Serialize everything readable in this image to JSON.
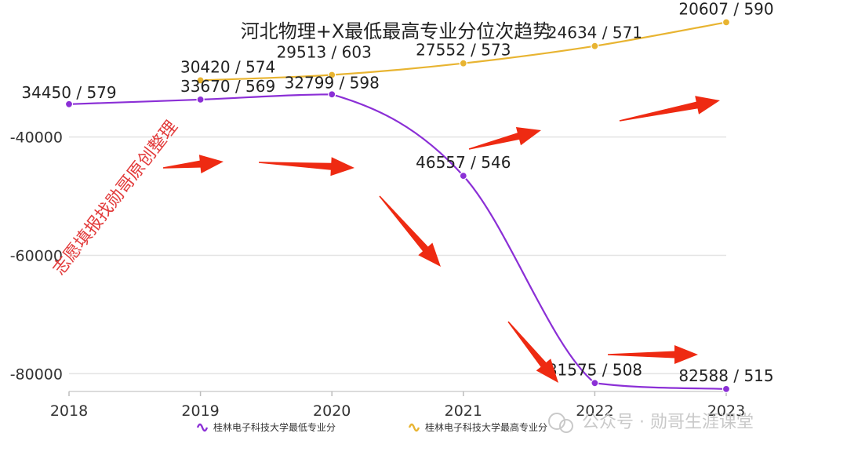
{
  "chart_data": {
    "type": "line",
    "title": "河北物理+X最低最高专业分位次趋势",
    "x": [
      "2018",
      "2019",
      "2020",
      "2021",
      "2022",
      "2023"
    ],
    "y_ticks": [
      -40000,
      -60000,
      -80000
    ],
    "y_tick_labels": [
      "-40000",
      "-60000",
      "-80000"
    ],
    "ylim": [
      -83000,
      -19500
    ],
    "grid": true,
    "legend_position": "bottom",
    "series": [
      {
        "name": "桂林电子科技大学最低专业分",
        "color": "#8b2fd6",
        "values": [
          -34450,
          -33670,
          -32799,
          -46557,
          -81575,
          -82588
        ],
        "labels": [
          "34450 / 579",
          "33670 / 569",
          "32799 / 598",
          "46557 / 546",
          "81575 / 508",
          "82588 / 515"
        ]
      },
      {
        "name": "桂林电子科技大学最高专业分",
        "color": "#e8b431",
        "values": [
          null,
          -30420,
          -29513,
          -27552,
          -24634,
          -20607
        ],
        "labels": [
          null,
          "30420 / 574",
          "29513 / 603",
          "27552 / 573",
          "24634 / 571",
          "20607 / 590"
        ]
      }
    ],
    "annotations": {
      "diagonal_text": "志愿填报找勋哥原创整理",
      "watermark": "公众号 · 勋哥生涯课堂",
      "arrow_color": "#ee2a12"
    }
  }
}
